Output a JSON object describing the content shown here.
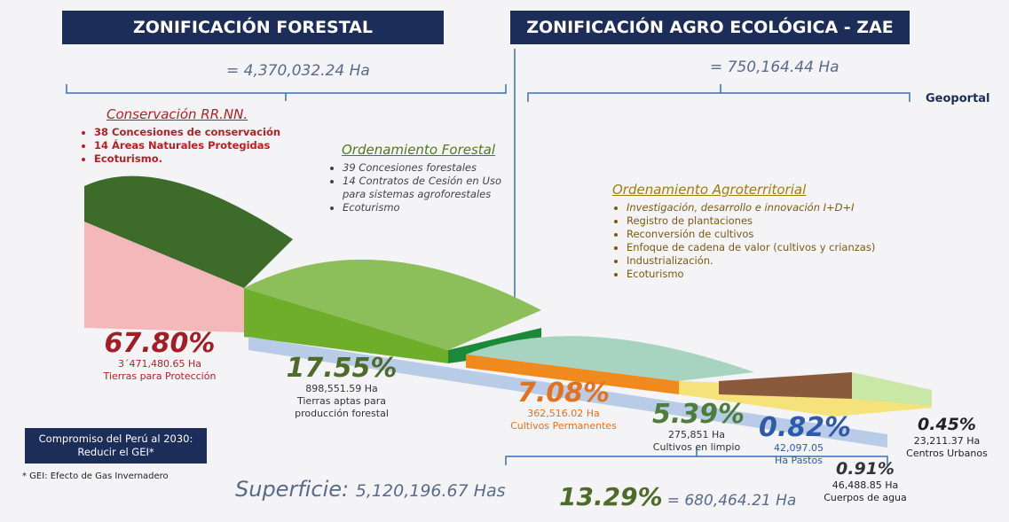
{
  "header": {
    "forestal_title": "ZONIFICACIÓN FORESTAL",
    "forestal_total": "= 4,370,032.24 Ha",
    "zae_title": "ZONIFICACIÓN AGRO ECOLÓGICA - ZAE",
    "zae_total": "= 750,164.44 Ha",
    "logo": "Geoportal"
  },
  "sections": [
    {
      "title": "Conservación RR.NN.",
      "items": [
        "38 Concesiones de conservación",
        "14 Áreas Naturales Protegidas",
        "Ecoturismo."
      ]
    },
    {
      "title": "Ordenamiento Forestal",
      "items": [
        "39 Concesiones forestales",
        "14 Contratos de Cesión en Uso para sistemas agroforestales",
        "Ecoturismo"
      ]
    },
    {
      "title": "Ordenamiento Agroterritorial",
      "items": [
        "Investigación, desarrollo e innovación I+D+I",
        "Registro de plantaciones",
        "Reconversión de cultivos",
        "Enfoque de cadena de valor (cultivos y crianzas)",
        "Industrialización.",
        "Ecoturismo"
      ]
    }
  ],
  "zones": [
    {
      "percent": "67.80%",
      "area": "3´471,480.65 Ha",
      "label": "Tierras para Protección"
    },
    {
      "percent": "17.55%",
      "area": "898,551.59 Ha",
      "label": "Tierras aptas para producción forestal"
    },
    {
      "percent": "7.08%",
      "area": "362,516.02 Ha",
      "label": "Cultivos Permanentes"
    },
    {
      "percent": "5.39%",
      "area": "275,851 Ha",
      "label": "Cultivos en limpio"
    },
    {
      "percent": "0.82%",
      "area": "42,097.05",
      "label": "Ha Pastos"
    },
    {
      "percent": "0.91%",
      "area": "46,488.85 Ha",
      "label": "Cuerpos de agua"
    },
    {
      "percent": "0.45%",
      "area": "23,211.37 Ha",
      "label": "Centros Urbanos"
    }
  ],
  "commitment": "Compromiso del Perú al 2030: Reducir el GEI*",
  "footnote": "* GEI: Efecto de Gas Invernadero",
  "surface": {
    "label": "Superficie:",
    "value": "5,120,196.67 Has"
  },
  "agri_total": {
    "percent": "13.29%",
    "value": "= 680,464.21 Ha"
  }
}
